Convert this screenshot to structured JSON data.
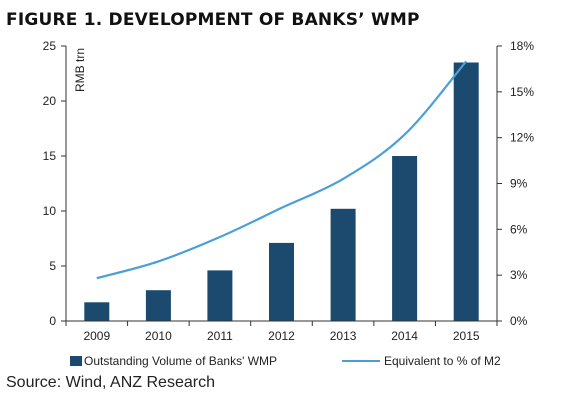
{
  "title": "FIGURE 1. DEVELOPMENT OF BANKS’ WMP",
  "source": "Source: Wind, ANZ Research",
  "chart_data": {
    "type": "bar+line",
    "categories": [
      "2009",
      "2010",
      "2011",
      "2012",
      "2013",
      "2014",
      "2015"
    ],
    "series": [
      {
        "name": "Outstanding Volume of Banks' WMP",
        "type": "bar",
        "axis": "left",
        "color": "#1b4a6e",
        "values": [
          1.7,
          2.8,
          4.6,
          7.1,
          10.2,
          15.0,
          23.5
        ]
      },
      {
        "name": "Equivalent to % of M2",
        "type": "line",
        "axis": "right",
        "color": "#4a9fd8",
        "values": [
          2.8,
          3.9,
          5.5,
          7.4,
          9.3,
          12.2,
          17.0
        ]
      }
    ],
    "left_axis": {
      "label": "RMB trn",
      "ylim": [
        0,
        25
      ],
      "ticks": [
        0,
        5,
        10,
        15,
        20,
        25
      ]
    },
    "right_axis": {
      "ylim": [
        0,
        18
      ],
      "ticks": [
        0,
        3,
        6,
        9,
        12,
        15,
        18
      ],
      "tick_labels": [
        "0%",
        "3%",
        "6%",
        "9%",
        "12%",
        "15%",
        "18%"
      ]
    },
    "grid": false,
    "legend_position": "bottom"
  }
}
